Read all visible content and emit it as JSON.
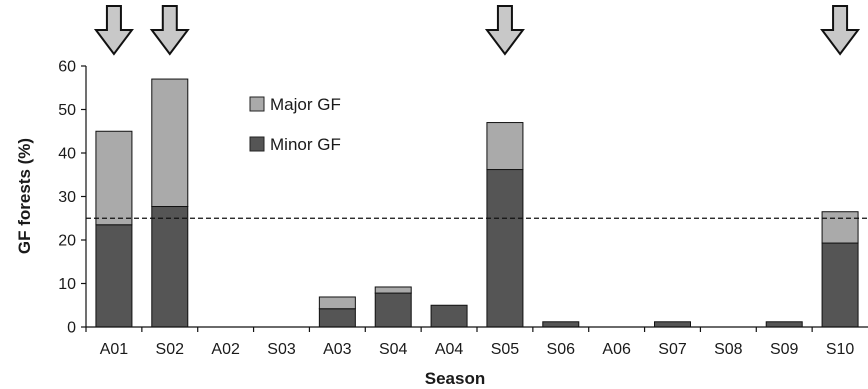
{
  "chart_data": {
    "type": "bar",
    "stacked": true,
    "categories": [
      "A01",
      "S02",
      "A02",
      "S03",
      "A03",
      "S04",
      "A04",
      "S05",
      "S06",
      "A06",
      "S07",
      "S08",
      "S09",
      "S10"
    ],
    "series": [
      {
        "name": "Minor GF",
        "color": "#555555",
        "values": [
          23.5,
          27.7,
          0,
          0,
          4.2,
          7.8,
          5,
          36.2,
          1.2,
          0,
          1.2,
          0,
          1.2,
          19.3
        ]
      },
      {
        "name": "Major GF",
        "color": "#aaaaaa",
        "values": [
          21.5,
          29.3,
          0,
          0,
          2.7,
          1.4,
          0,
          10.8,
          0,
          0,
          0,
          0,
          0,
          7.2
        ]
      }
    ],
    "legend_order": [
      "Major GF",
      "Minor GF"
    ],
    "legend_position": "top-left inside plot",
    "xlabel": "Season",
    "ylabel": "GF forests (%)",
    "ylim": [
      0,
      60
    ],
    "yticks": [
      0,
      10,
      20,
      30,
      40,
      50,
      60
    ],
    "reference_line": {
      "y": 25,
      "style": "dashed"
    },
    "arrow_markers": [
      "A01",
      "S02",
      "S05",
      "S10"
    ],
    "grid": false
  }
}
